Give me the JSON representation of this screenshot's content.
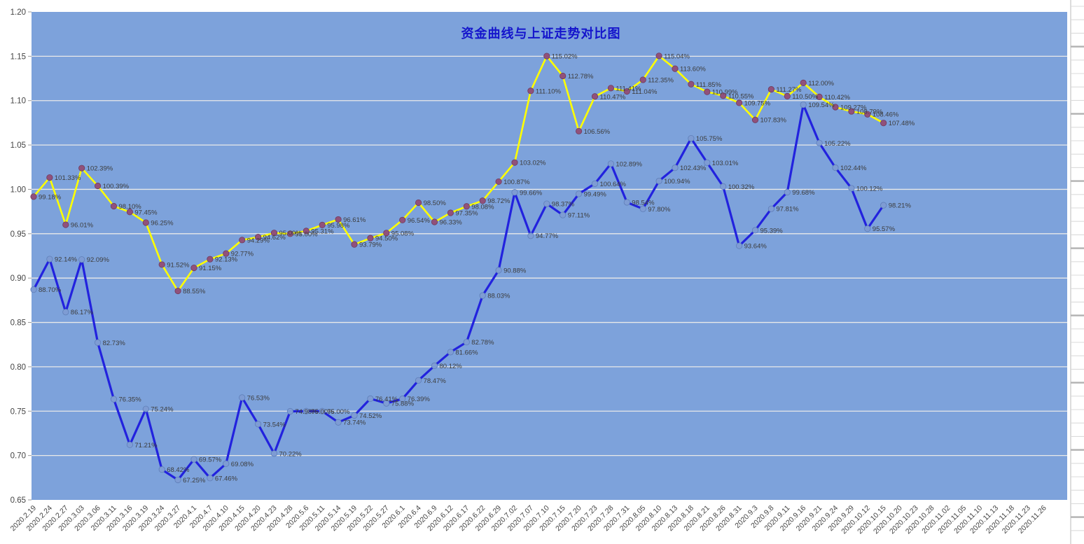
{
  "title": {
    "text": "资金曲线与上证走势对比图",
    "color": "#1414CC"
  },
  "y_axis": {
    "ticks": [
      "1.20",
      "1.15",
      "1.10",
      "1.05",
      "1.00",
      "0.95",
      "0.90",
      "0.85",
      "0.80",
      "0.75",
      "0.70",
      "0.65"
    ],
    "min": 0.65,
    "max": 1.2,
    "step": 0.05
  },
  "x_axis": {
    "labels": [
      "2020.2.19",
      "2020.2.24",
      "2020.2.27",
      "2020.3.03",
      "2020.3.06",
      "2020.3.11",
      "2020.3.16",
      "2020.3.19",
      "2020.3.24",
      "2020.3.27",
      "2020.4.1",
      "2020.4.7",
      "2020.4.10",
      "2020.4.15",
      "2020.4.20",
      "2020.4.23",
      "2020.4.28",
      "2020.5.6",
      "2020.5.11",
      "2020.5.14",
      "2020.5.19",
      "2020.5.22",
      "2020.5.27",
      "2020.6.1",
      "2020.6.4",
      "2020.6.9",
      "2020.6.12",
      "2020.6.17",
      "2020.6.22",
      "2020.6.29",
      "2020.7.02",
      "2020.7.07",
      "2020.7.10",
      "2020.7.15",
      "2020.7.20",
      "2020.7.23",
      "2020.7.28",
      "2020.7.31",
      "2020.8.05",
      "2020.8.10",
      "2020.8.13",
      "2020.8.18",
      "2020.8.21",
      "2020.8.26",
      "2020.8.31",
      "2020.9.3",
      "2020.9.8",
      "2020.9.11",
      "2020.9.16",
      "2020.9.21",
      "2020.9.24",
      "2020.9.29",
      "2020.10.12",
      "2020.10.15",
      "2020.10.20",
      "2020.10.23",
      "2020.10.28",
      "2020.11.02",
      "2020.11.05",
      "2020.11.10",
      "2020.11.13",
      "2020.11.18",
      "2020.11.23",
      "2020.11.26"
    ]
  },
  "chart_data": {
    "type": "line",
    "title": "资金曲线与上证走势对比图",
    "xlabel": "",
    "ylabel": "",
    "ylim": [
      0.65,
      1.2
    ],
    "grid": true,
    "legend": "none",
    "data_label_format": "0.00%",
    "colors": {
      "plot_background": "#7DA2DB",
      "gridline": "#E9E9E9",
      "data_label": "#3C3C3C",
      "axis_text": "#444444",
      "title": "#1414CC"
    },
    "x": [
      "2020.2.19",
      "2020.2.24",
      "2020.2.27",
      "2020.3.03",
      "2020.3.06",
      "2020.3.11",
      "2020.3.16",
      "2020.3.19",
      "2020.3.24",
      "2020.3.27",
      "2020.4.1",
      "2020.4.7",
      "2020.4.10",
      "2020.4.15",
      "2020.4.20",
      "2020.4.23",
      "2020.4.28",
      "2020.5.6",
      "2020.5.11",
      "2020.5.14",
      "2020.5.19",
      "2020.5.22",
      "2020.5.27",
      "2020.6.1",
      "2020.6.4",
      "2020.6.9",
      "2020.6.12",
      "2020.6.17",
      "2020.6.22",
      "2020.6.29",
      "2020.7.02",
      "2020.7.07",
      "2020.7.10",
      "2020.7.15",
      "2020.7.20",
      "2020.7.23",
      "2020.7.28",
      "2020.7.31",
      "2020.8.05",
      "2020.8.10",
      "2020.8.13",
      "2020.8.18",
      "2020.8.21",
      "2020.8.26",
      "2020.8.31",
      "2020.9.3",
      "2020.9.8",
      "2020.9.11",
      "2020.9.16",
      "2020.9.21",
      "2020.9.24",
      "2020.9.29",
      "2020.10.12",
      "2020.10.15",
      "2020.10.20",
      "2020.10.23",
      "2020.10.28",
      "2020.11.02",
      "2020.11.05",
      "2020.11.10",
      "2020.11.13",
      "2020.11.18",
      "2020.11.23",
      "2020.11.26"
    ],
    "series": [
      {
        "name": "资金曲线",
        "unit": "percent",
        "line_color": "#FFFF00",
        "marker_color": "#91517B",
        "marker_edge": "#6E3C5E",
        "values": [
          99.18,
          101.33,
          96.01,
          102.39,
          100.39,
          98.1,
          97.45,
          96.25,
          91.52,
          88.55,
          91.15,
          92.13,
          92.77,
          94.29,
          94.62,
          95.09,
          95.0,
          95.31,
          95.98,
          96.61,
          93.79,
          94.5,
          95.08,
          96.54,
          98.5,
          96.33,
          97.35,
          98.08,
          98.72,
          100.87,
          103.02,
          111.1,
          115.02,
          112.78,
          106.56,
          110.47,
          111.41,
          111.04,
          112.35,
          115.04,
          113.6,
          111.85,
          110.99,
          110.55,
          109.75,
          107.83,
          111.27,
          110.5,
          112.0,
          110.42,
          109.27,
          108.79,
          108.46,
          107.48,
          null,
          null,
          null,
          null,
          null,
          null,
          null,
          null,
          null,
          null
        ]
      },
      {
        "name": "上证走势",
        "unit": "percent",
        "line_color": "#2222DE",
        "marker_color": "#7E9CD4",
        "marker_edge": "#5F7FB8",
        "values": [
          88.7,
          92.14,
          86.17,
          92.09,
          82.73,
          76.35,
          71.21,
          75.24,
          68.42,
          67.25,
          69.57,
          67.46,
          69.08,
          76.53,
          73.54,
          70.22,
          74.98,
          75.0,
          75.0,
          73.74,
          74.52,
          76.41,
          75.88,
          76.39,
          78.47,
          80.12,
          81.66,
          82.78,
          88.03,
          90.88,
          99.66,
          94.77,
          98.37,
          97.11,
          99.49,
          100.64,
          102.89,
          98.54,
          97.8,
          100.94,
          102.43,
          105.75,
          103.01,
          100.32,
          93.64,
          95.39,
          97.81,
          99.68,
          109.54,
          105.22,
          102.44,
          100.12,
          95.57,
          98.21,
          null,
          null,
          null,
          null,
          null,
          null,
          null,
          null,
          null,
          null
        ]
      }
    ]
  }
}
